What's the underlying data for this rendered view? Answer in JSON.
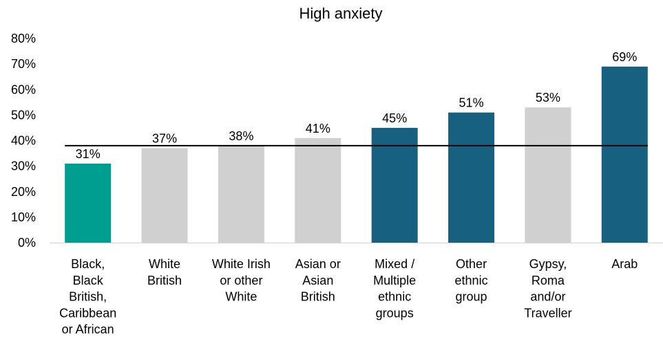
{
  "chart_data": {
    "type": "bar",
    "title": "High anxiety",
    "xlabel": "",
    "ylabel": "",
    "ylim": [
      0,
      80
    ],
    "yticks": [
      "0%",
      "10%",
      "20%",
      "30%",
      "40%",
      "50%",
      "60%",
      "70%",
      "80%"
    ],
    "grid": false,
    "legend": "none",
    "reference_line_value": 38,
    "categories": [
      "Black, Black British, Caribbean or African",
      "White British",
      "White Irish or other White",
      "Asian or Asian British",
      "Mixed / Multiple ethnic groups",
      "Other ethnic group",
      "Gypsy, Roma and/or Traveller",
      "Arab"
    ],
    "category_lines": [
      [
        "Black,",
        "Black",
        "British,",
        "Caribbean",
        "or African"
      ],
      [
        "White",
        "British"
      ],
      [
        "White Irish",
        "or other",
        "White"
      ],
      [
        "Asian or",
        "Asian",
        "British"
      ],
      [
        "Mixed /",
        "Multiple",
        "ethnic",
        "groups"
      ],
      [
        "Other",
        "ethnic",
        "group"
      ],
      [
        "Gypsy,",
        "Roma",
        "and/or",
        "Traveller"
      ],
      [
        "Arab"
      ]
    ],
    "values": [
      31,
      37,
      38,
      41,
      45,
      51,
      53,
      69
    ],
    "data_labels": [
      "31%",
      "37%",
      "38%",
      "41%",
      "45%",
      "51%",
      "53%",
      "69%"
    ],
    "colors": [
      "#009e91",
      "#d0d0d0",
      "#d0d0d0",
      "#d0d0d0",
      "#17607f",
      "#17607f",
      "#d0d0d0",
      "#17607f"
    ],
    "reference_line_color": "#000000",
    "axis_color": "#d9d9d9"
  }
}
